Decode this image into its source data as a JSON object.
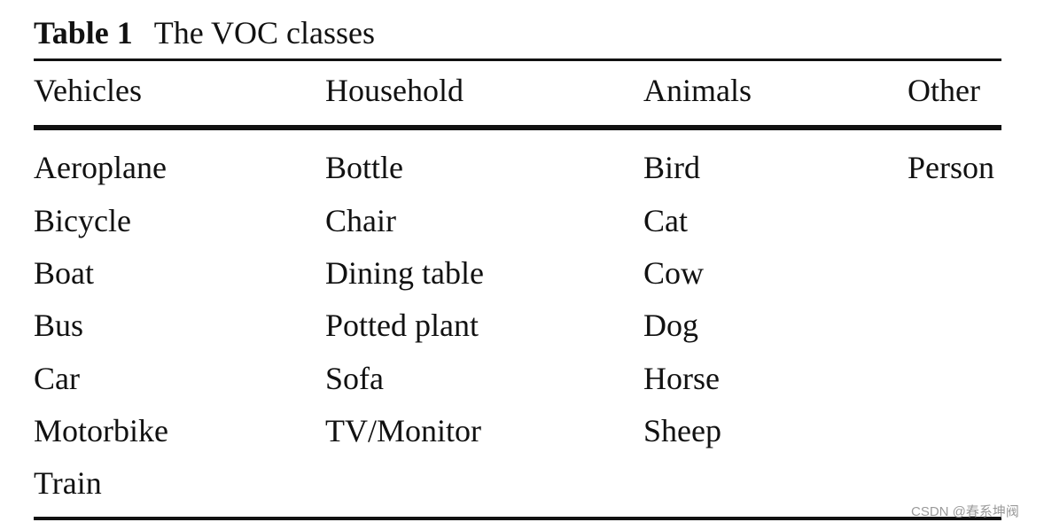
{
  "caption": {
    "label": "Table 1",
    "text": "The VOC classes"
  },
  "table": {
    "headers": [
      "Vehicles",
      "Household",
      "Animals",
      "Other"
    ],
    "columns": [
      [
        "Aeroplane",
        "Bicycle",
        "Boat",
        "Bus",
        "Car",
        "Motorbike",
        "Train"
      ],
      [
        "Bottle",
        "Chair",
        "Dining table",
        "Potted plant",
        "Sofa",
        "TV/Monitor"
      ],
      [
        "Bird",
        "Cat",
        "Cow",
        "Dog",
        "Horse",
        "Sheep"
      ],
      [
        "Person"
      ]
    ]
  },
  "watermark": "CSDN @春系坤阀"
}
